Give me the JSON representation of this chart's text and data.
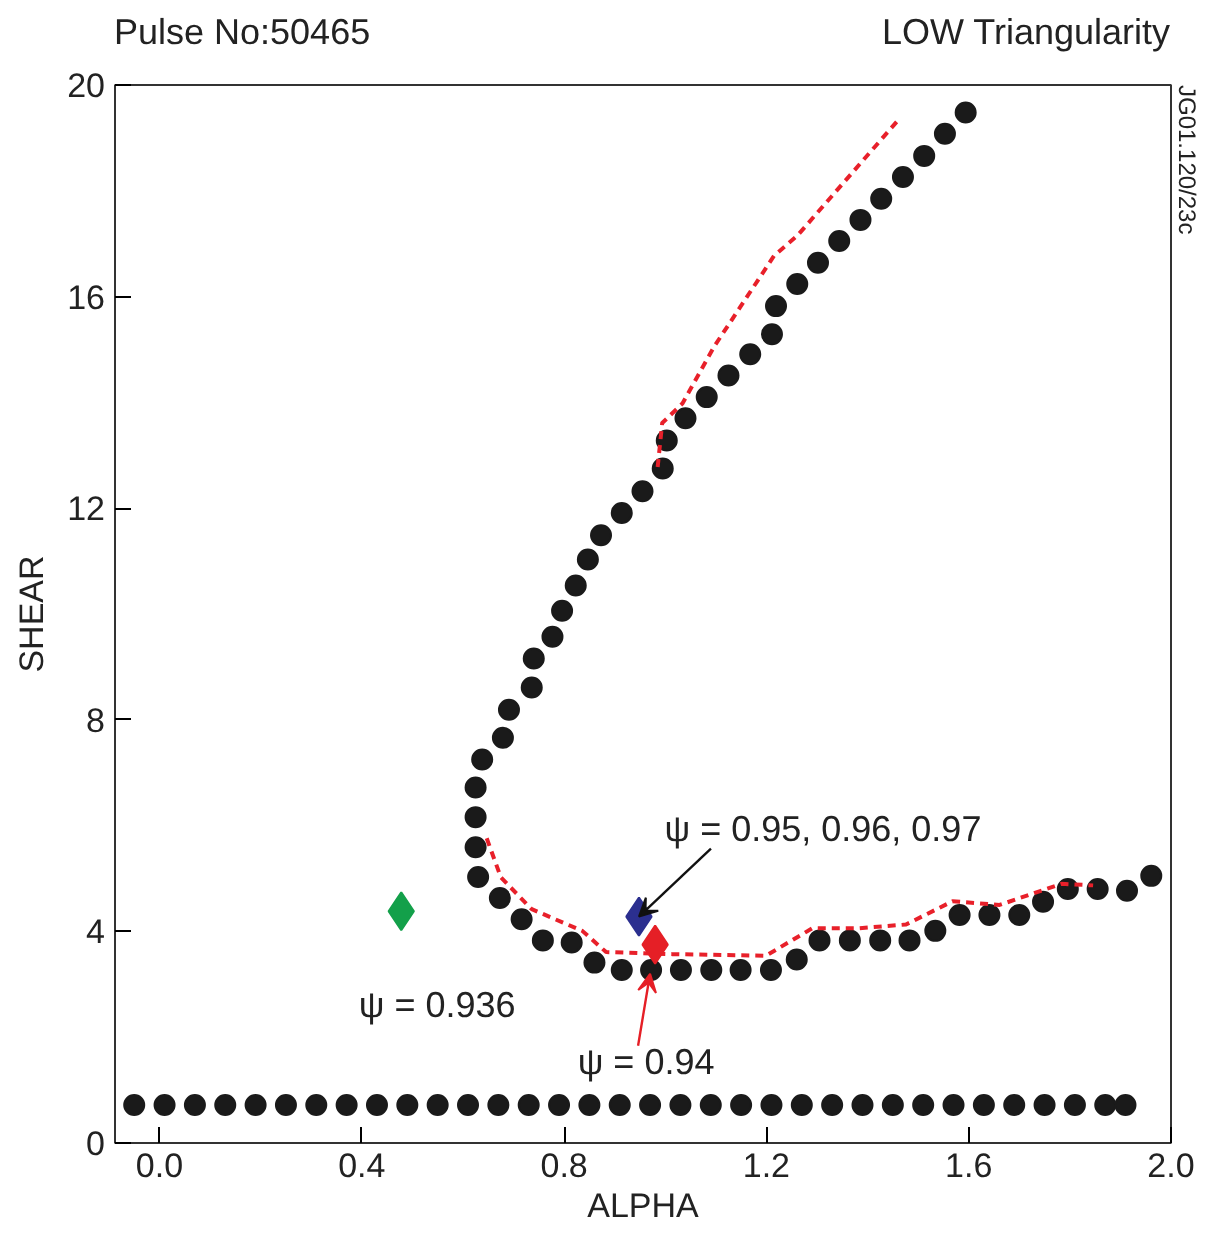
{
  "chart_data": {
    "type": "scatter",
    "title": "Pulse No:50465",
    "subtitle": "LOW Triangularity",
    "xlabel": "ALPHA",
    "ylabel": "SHEAR",
    "xlim": [
      -0.088,
      2.0
    ],
    "ylim": [
      0,
      20
    ],
    "xticks": [
      {
        "value": 0,
        "label": "0.0"
      },
      {
        "value": 0.4,
        "label": "0.4"
      },
      {
        "value": 0.8,
        "label": "0.8"
      },
      {
        "value": 1.2,
        "label": "1.2"
      },
      {
        "value": 1.6,
        "label": "1.6"
      },
      {
        "value": 2.0,
        "label": "2.0"
      }
    ],
    "yticks": [
      0,
      4,
      8,
      12,
      16,
      20
    ],
    "grid": false,
    "series": [
      {
        "marker": "circle",
        "color": "#1a1a1a",
        "x": [
          -0.05,
          0.01,
          0.07,
          0.13,
          0.19,
          0.25,
          0.31,
          0.37,
          0.43,
          0.49,
          0.55,
          0.61,
          0.67,
          0.73,
          0.79,
          0.85,
          0.91,
          0.97,
          1.03,
          1.09,
          1.15,
          1.21,
          1.27,
          1.33,
          1.39,
          1.45,
          1.51,
          1.57,
          1.63,
          1.69,
          1.75,
          1.81,
          1.87,
          1.91
        ],
        "values": [
          0.72,
          0.72,
          0.72,
          0.72,
          0.72,
          0.72,
          0.72,
          0.72,
          0.72,
          0.72,
          0.72,
          0.72,
          0.72,
          0.72,
          0.72,
          0.72,
          0.72,
          0.72,
          0.72,
          0.72,
          0.72,
          0.72,
          0.72,
          0.72,
          0.72,
          0.72,
          0.72,
          0.72,
          0.72,
          0.72,
          0.72,
          0.72,
          0.72,
          0.72
        ]
      },
      {
        "marker": "circle",
        "color": "#1a1a1a",
        "x": [
          1.594,
          1.553,
          1.512,
          1.47,
          1.427,
          1.386,
          1.344,
          1.302,
          1.261,
          1.219,
          1.211,
          1.168,
          1.125,
          1.082,
          1.04,
          1.003,
          0.995,
          0.955,
          0.914,
          0.873,
          0.847,
          0.823,
          0.796,
          0.777,
          0.74,
          0.736,
          0.691,
          0.679,
          0.638,
          0.625,
          0.625,
          0.625,
          0.63,
          0.673,
          0.716,
          0.758,
          0.815,
          0.86,
          0.914,
          0.972,
          1.031,
          1.091,
          1.149,
          1.209,
          1.26,
          1.305,
          1.365,
          1.425,
          1.483,
          1.534,
          1.582,
          1.641,
          1.7,
          1.747,
          1.796,
          1.855,
          1.913,
          1.961
        ],
        "values": [
          19.48,
          19.08,
          18.66,
          18.26,
          17.85,
          17.45,
          17.05,
          16.64,
          16.24,
          15.82,
          15.29,
          14.91,
          14.51,
          14.1,
          13.7,
          13.28,
          12.75,
          12.32,
          11.91,
          11.49,
          11.03,
          10.54,
          10.06,
          9.57,
          9.16,
          8.61,
          8.19,
          7.66,
          7.25,
          6.72,
          6.16,
          5.59,
          5.03,
          4.63,
          4.23,
          3.83,
          3.79,
          3.41,
          3.27,
          3.27,
          3.27,
          3.27,
          3.27,
          3.27,
          3.47,
          3.83,
          3.83,
          3.83,
          3.83,
          4.01,
          4.31,
          4.31,
          4.31,
          4.56,
          4.8,
          4.8,
          4.77,
          5.05
        ]
      },
      {
        "type": "line",
        "line_style": "dashed",
        "color": "#e8202a",
        "x": [
          0.985,
          0.994,
          1.034,
          1.097,
          1.215,
          1.261,
          1.459,
          null,
          0.647,
          0.675,
          0.736,
          0.836,
          0.883,
          1.014,
          1.199,
          1.291,
          1.384,
          1.476,
          1.568,
          1.661,
          1.784,
          1.846
        ],
        "values": [
          12.78,
          13.61,
          13.98,
          15.06,
          16.77,
          17.15,
          19.32,
          null,
          5.76,
          5.02,
          4.42,
          4.01,
          3.61,
          3.57,
          3.54,
          4.06,
          4.06,
          4.13,
          4.57,
          4.5,
          4.9,
          4.87
        ]
      },
      {
        "marker": "diamond",
        "color": "#13a04a",
        "x": [
          0.478
        ],
        "values": [
          4.38
        ]
      },
      {
        "marker": "diamond",
        "color": "#2b2f8f",
        "x": [
          0.948
        ],
        "values": [
          4.28
        ]
      },
      {
        "marker": "diamond",
        "color": "#e51f26",
        "x": [
          0.98
        ],
        "values": [
          3.75
        ]
      }
    ],
    "annotations": [
      {
        "text": "ψ = 0.95, 0.96, 0.97",
        "x": 0.948,
        "y": 4.28
      },
      {
        "text": "ψ = 0.936",
        "x": 0.478,
        "y": 4.38
      },
      {
        "text": "ψ = 0.94",
        "x": 0.97,
        "y": 3.2
      },
      "JG01.120/23c"
    ]
  }
}
